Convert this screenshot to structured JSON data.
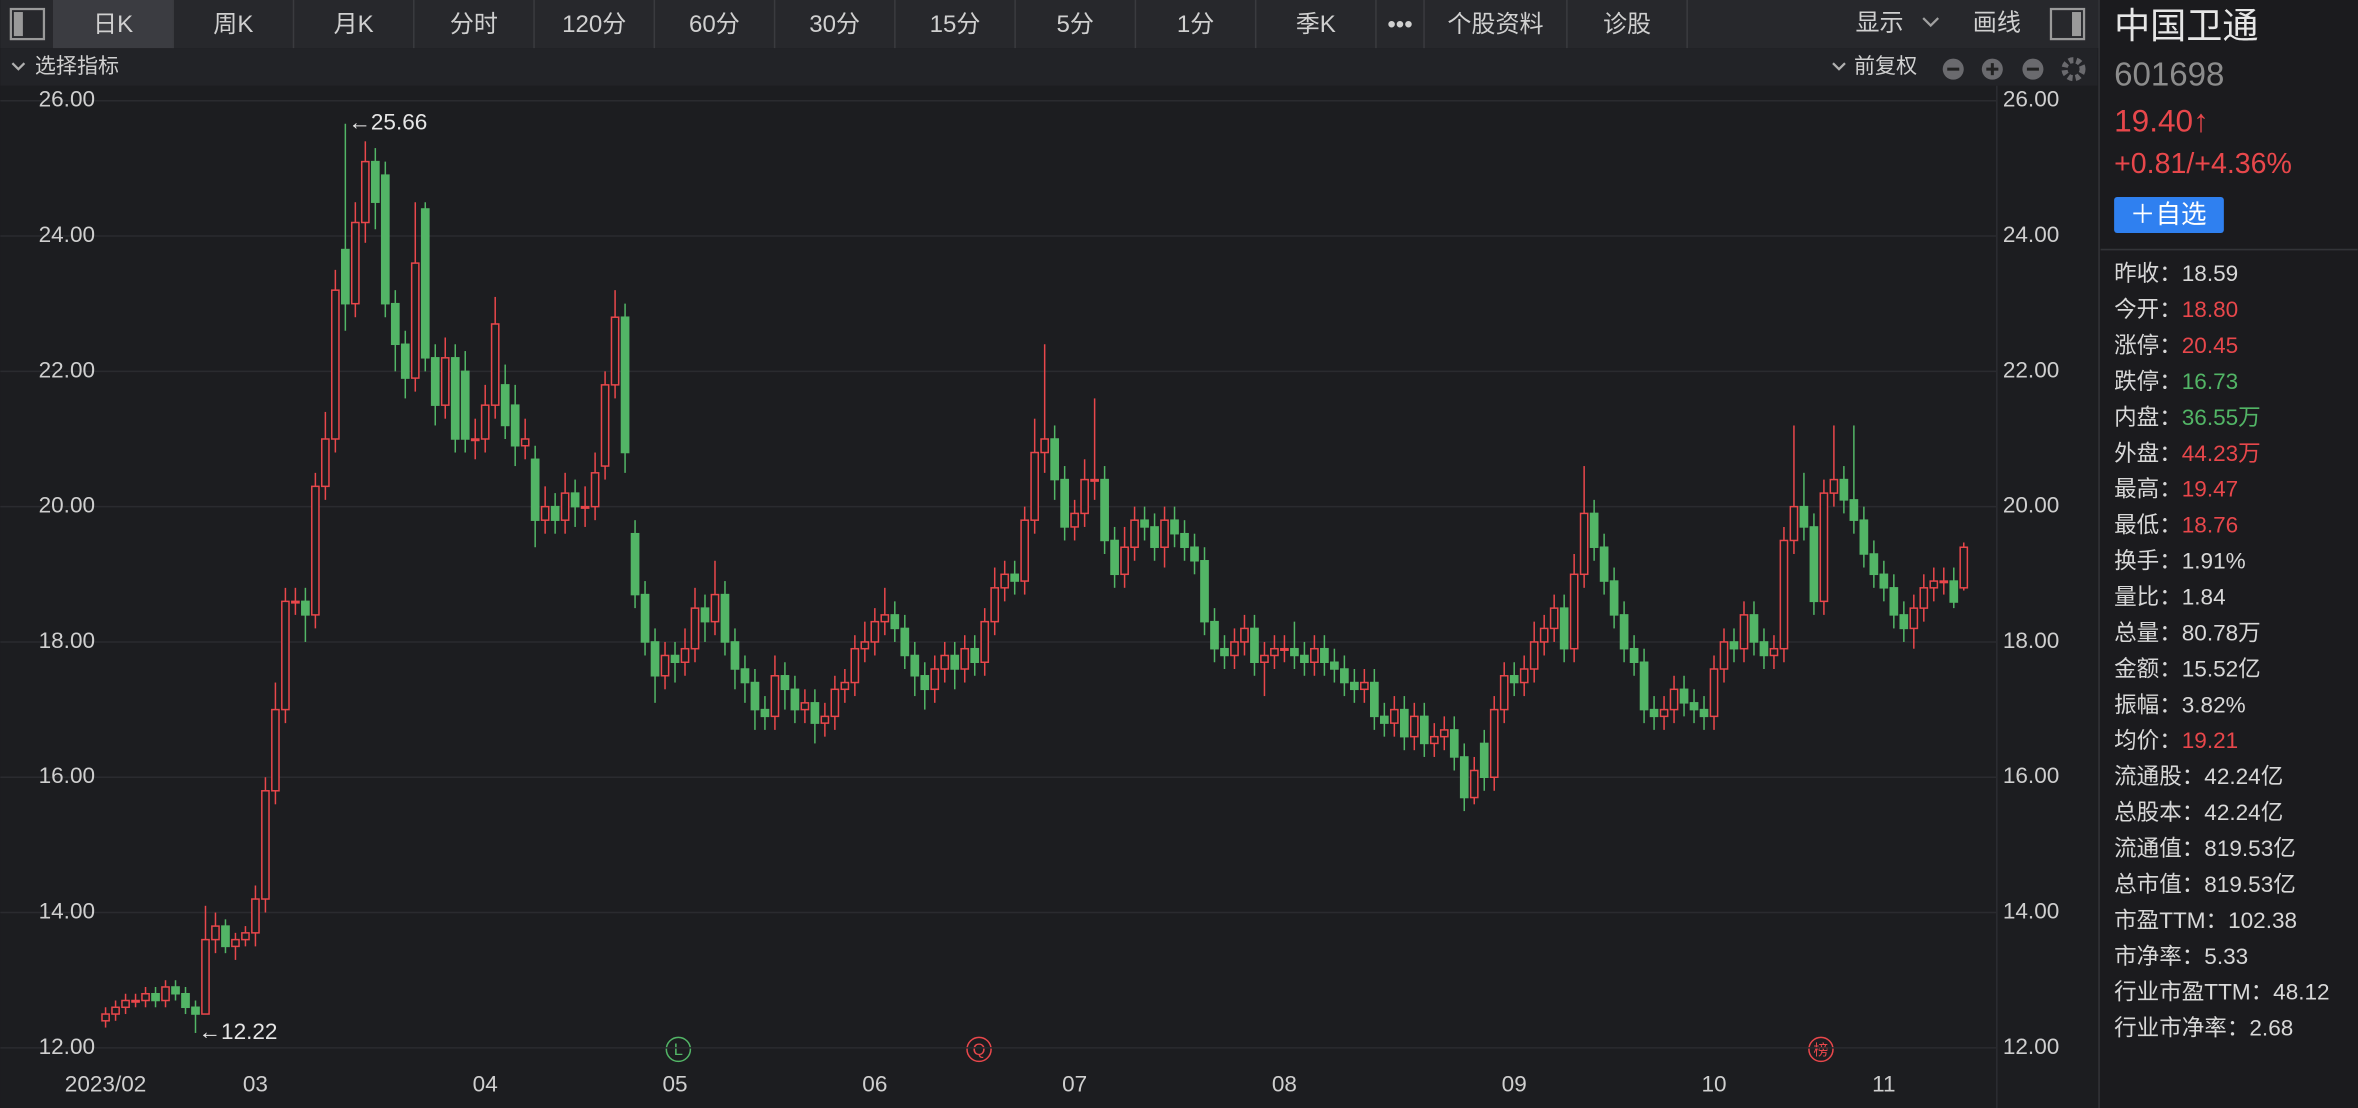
{
  "toolbar": {
    "tabs": [
      "日K",
      "周K",
      "月K",
      "分时",
      "120分",
      "60分",
      "30分",
      "15分",
      "5分",
      "1分",
      "季K",
      "•••",
      "个股资料",
      "诊股"
    ],
    "display": "显示",
    "draw": "画线"
  },
  "subbar": {
    "indicator": "选择指标",
    "adjust": "前复权"
  },
  "chart_data": {
    "type": "candlestick",
    "categories": [
      "2023/02",
      null,
      null,
      null,
      null,
      null,
      null,
      null,
      null,
      null,
      null,
      null,
      null,
      null,
      null,
      "03",
      null,
      null,
      null,
      null,
      null,
      null,
      null,
      null,
      null,
      null,
      null,
      null,
      null,
      null,
      null,
      null,
      null,
      null,
      null,
      null,
      null,
      null,
      "04",
      null,
      null,
      null,
      null,
      null,
      null,
      null,
      null,
      null,
      null,
      null,
      null,
      null,
      null,
      null,
      null,
      null,
      null,
      "05",
      null,
      null,
      null,
      null,
      null,
      null,
      null,
      null,
      null,
      null,
      null,
      null,
      null,
      null,
      null,
      null,
      null,
      null,
      null,
      "06",
      null,
      null,
      null,
      null,
      null,
      null,
      null,
      null,
      null,
      null,
      null,
      null,
      null,
      null,
      null,
      null,
      null,
      null,
      null,
      "07",
      null,
      null,
      null,
      null,
      null,
      null,
      null,
      null,
      null,
      null,
      null,
      null,
      null,
      null,
      null,
      null,
      null,
      null,
      null,
      null,
      "08",
      null,
      null,
      null,
      null,
      null,
      null,
      null,
      null,
      null,
      null,
      null,
      null,
      null,
      null,
      null,
      null,
      null,
      null,
      null,
      null,
      null,
      null,
      "09",
      null,
      null,
      null,
      null,
      null,
      null,
      null,
      null,
      null,
      null,
      null,
      null,
      null,
      null,
      null,
      null,
      null,
      null,
      null,
      "10",
      null,
      null,
      null,
      null,
      null,
      null,
      null,
      null,
      null,
      null,
      null,
      null,
      null,
      null,
      null,
      null,
      "11",
      null,
      null,
      null,
      null,
      null,
      null,
      null,
      null
    ],
    "open": [
      12.4,
      12.5,
      12.6,
      12.7,
      12.7,
      12.8,
      12.7,
      12.9,
      12.8,
      12.6,
      12.5,
      13.6,
      13.8,
      13.5,
      13.6,
      13.7,
      14.2,
      15.8,
      17.0,
      18.6,
      18.6,
      18.4,
      20.3,
      21.0,
      23.8,
      23.0,
      24.2,
      25.1,
      24.9,
      23.0,
      22.4,
      21.9,
      24.4,
      22.2,
      21.5,
      22.2,
      22.0,
      21.0,
      21.0,
      21.5,
      21.8,
      21.5,
      20.9,
      20.7,
      19.8,
      20.0,
      19.8,
      20.2,
      20.0,
      20.0,
      20.6,
      21.8,
      22.8,
      19.6,
      18.7,
      18.0,
      17.5,
      17.8,
      17.7,
      17.9,
      18.5,
      18.3,
      18.7,
      18.0,
      17.6,
      17.4,
      17.0,
      16.9,
      17.5,
      17.3,
      17.0,
      17.1,
      16.8,
      16.9,
      17.3,
      17.4,
      17.9,
      18.0,
      18.3,
      18.4,
      18.2,
      17.8,
      17.5,
      17.3,
      17.6,
      17.8,
      17.6,
      17.9,
      17.7,
      18.3,
      18.8,
      19.0,
      18.9,
      19.8,
      20.8,
      21.0,
      20.4,
      19.7,
      19.9,
      20.4,
      20.4,
      19.5,
      19.0,
      19.4,
      19.8,
      19.7,
      19.4,
      19.8,
      19.6,
      19.4,
      19.2,
      18.3,
      17.9,
      17.8,
      18.0,
      18.2,
      17.7,
      17.8,
      17.9,
      17.9,
      17.8,
      17.7,
      17.9,
      17.7,
      17.6,
      17.4,
      17.3,
      17.4,
      16.9,
      16.8,
      17.0,
      16.6,
      16.9,
      16.5,
      16.6,
      16.7,
      16.3,
      15.7,
      16.5,
      16.0,
      17.0,
      17.5,
      17.4,
      17.6,
      18.0,
      18.2,
      18.5,
      17.9,
      19.0,
      19.9,
      19.4,
      18.9,
      18.4,
      17.9,
      17.7,
      17.0,
      16.9,
      17.0,
      17.3,
      17.1,
      17.0,
      16.9,
      17.6,
      18.0,
      17.9,
      18.4,
      18.0,
      17.8,
      17.9,
      19.5,
      20.0,
      19.7,
      18.6,
      20.2,
      20.4,
      20.1,
      19.8,
      19.3,
      19.0,
      18.8,
      18.4,
      18.2,
      18.5,
      18.8,
      18.9,
      18.9,
      18.8
    ],
    "high": [
      12.6,
      12.7,
      12.8,
      12.8,
      12.9,
      12.9,
      13.0,
      13.0,
      12.9,
      12.7,
      14.1,
      14.0,
      13.9,
      13.7,
      13.8,
      14.4,
      16.0,
      17.4,
      18.8,
      18.8,
      18.8,
      20.5,
      21.4,
      23.5,
      25.66,
      24.5,
      25.4,
      25.3,
      25.1,
      23.2,
      22.6,
      24.5,
      24.5,
      22.4,
      22.5,
      22.4,
      22.3,
      21.3,
      21.8,
      23.1,
      22.1,
      21.8,
      21.3,
      20.9,
      20.3,
      20.2,
      20.5,
      20.4,
      20.3,
      20.8,
      22.0,
      23.2,
      23.0,
      19.8,
      18.9,
      18.2,
      18.0,
      18.0,
      18.2,
      18.8,
      18.7,
      19.2,
      18.9,
      18.2,
      17.8,
      17.6,
      17.2,
      17.8,
      17.7,
      17.5,
      17.3,
      17.3,
      17.1,
      17.5,
      17.6,
      18.1,
      18.3,
      18.5,
      18.8,
      18.6,
      18.4,
      18.0,
      17.7,
      17.8,
      18.0,
      18.0,
      18.1,
      18.1,
      18.5,
      19.1,
      19.2,
      19.2,
      20.0,
      21.3,
      22.4,
      21.2,
      20.6,
      20.1,
      20.7,
      21.6,
      20.6,
      19.7,
      19.7,
      20.0,
      20.0,
      19.9,
      20.0,
      20.0,
      19.8,
      19.6,
      19.4,
      18.5,
      18.1,
      18.2,
      18.4,
      18.4,
      18.0,
      18.1,
      18.1,
      18.3,
      18.0,
      18.1,
      18.1,
      17.9,
      17.8,
      17.6,
      17.6,
      17.6,
      17.1,
      17.2,
      17.2,
      17.1,
      17.1,
      16.8,
      16.9,
      16.9,
      16.5,
      16.3,
      16.7,
      17.2,
      17.7,
      17.7,
      17.8,
      18.3,
      18.4,
      18.7,
      18.7,
      19.3,
      20.6,
      20.1,
      19.6,
      19.1,
      18.6,
      18.1,
      17.9,
      17.2,
      17.2,
      17.5,
      17.5,
      17.3,
      17.2,
      17.8,
      18.2,
      18.2,
      18.6,
      18.6,
      18.2,
      18.1,
      19.7,
      21.2,
      20.5,
      19.9,
      20.4,
      21.2,
      20.6,
      21.2,
      20.0,
      19.5,
      19.2,
      19.0,
      18.6,
      18.7,
      19.0,
      19.1,
      19.1,
      19.1,
      19.47
    ],
    "low": [
      12.3,
      12.4,
      12.5,
      12.6,
      12.6,
      12.6,
      12.6,
      12.7,
      12.5,
      12.22,
      12.5,
      13.4,
      13.4,
      13.3,
      13.5,
      13.5,
      14.0,
      15.6,
      16.8,
      18.4,
      18.0,
      18.2,
      20.1,
      20.8,
      22.6,
      22.8,
      23.9,
      24.1,
      22.8,
      22.0,
      21.6,
      21.7,
      22.0,
      21.2,
      21.3,
      20.8,
      20.8,
      20.7,
      20.8,
      21.3,
      21.0,
      20.6,
      20.7,
      19.4,
      19.6,
      19.6,
      19.6,
      19.7,
      19.7,
      19.8,
      20.4,
      21.6,
      20.5,
      18.5,
      17.8,
      17.1,
      17.3,
      17.4,
      17.5,
      17.7,
      18.0,
      18.1,
      17.8,
      17.3,
      17.1,
      16.7,
      16.7,
      16.7,
      17.0,
      16.8,
      16.8,
      16.5,
      16.6,
      16.7,
      17.1,
      17.2,
      17.7,
      17.8,
      18.1,
      18.0,
      17.6,
      17.2,
      17.0,
      17.1,
      17.4,
      17.3,
      17.4,
      17.5,
      17.5,
      18.1,
      18.6,
      18.7,
      18.7,
      19.6,
      20.5,
      20.1,
      19.5,
      19.5,
      19.7,
      20.1,
      19.3,
      18.8,
      18.8,
      19.2,
      19.5,
      19.2,
      19.1,
      19.4,
      19.2,
      19.0,
      18.1,
      17.7,
      17.6,
      17.6,
      17.8,
      17.5,
      17.2,
      17.6,
      17.7,
      17.6,
      17.5,
      17.5,
      17.5,
      17.4,
      17.2,
      17.1,
      17.1,
      16.7,
      16.6,
      16.6,
      16.4,
      16.4,
      16.3,
      16.3,
      16.4,
      16.1,
      15.5,
      15.6,
      15.8,
      15.8,
      16.8,
      17.2,
      17.2,
      17.4,
      17.8,
      18.0,
      17.7,
      17.7,
      18.8,
      19.2,
      18.7,
      18.2,
      17.7,
      17.5,
      16.8,
      16.7,
      16.7,
      16.8,
      16.9,
      16.8,
      16.7,
      16.7,
      17.4,
      17.7,
      17.7,
      17.8,
      17.6,
      17.6,
      17.7,
      19.3,
      19.5,
      18.4,
      18.4,
      20.0,
      19.9,
      19.6,
      19.1,
      18.8,
      18.6,
      18.2,
      18.0,
      17.9,
      18.3,
      18.6,
      18.7,
      18.5,
      18.76
    ],
    "close": [
      12.5,
      12.6,
      12.7,
      12.7,
      12.8,
      12.7,
      12.9,
      12.8,
      12.6,
      12.5,
      13.6,
      13.8,
      13.5,
      13.6,
      13.7,
      14.2,
      15.8,
      17.0,
      18.6,
      18.6,
      18.4,
      20.3,
      21.0,
      23.2,
      23.0,
      24.2,
      25.1,
      24.5,
      23.0,
      22.4,
      21.9,
      23.6,
      22.2,
      21.5,
      22.2,
      21.0,
      21.0,
      21.0,
      21.5,
      22.7,
      21.2,
      20.9,
      21.0,
      19.8,
      20.0,
      19.8,
      20.2,
      20.0,
      20.0,
      20.5,
      21.8,
      22.8,
      20.8,
      18.7,
      18.0,
      17.5,
      17.8,
      17.7,
      17.9,
      18.5,
      18.3,
      18.7,
      18.0,
      17.6,
      17.4,
      17.0,
      16.9,
      17.5,
      17.3,
      17.0,
      17.1,
      16.8,
      16.9,
      17.3,
      17.4,
      17.9,
      18.0,
      18.3,
      18.4,
      18.2,
      17.8,
      17.5,
      17.3,
      17.6,
      17.8,
      17.6,
      17.9,
      17.7,
      18.3,
      18.8,
      19.0,
      18.9,
      19.8,
      20.8,
      21.0,
      20.4,
      19.7,
      19.9,
      20.4,
      20.4,
      19.5,
      19.0,
      19.4,
      19.8,
      19.7,
      19.4,
      19.8,
      19.6,
      19.4,
      19.2,
      18.3,
      17.9,
      17.8,
      18.0,
      18.2,
      17.7,
      17.8,
      17.9,
      17.9,
      17.8,
      17.7,
      17.9,
      17.7,
      17.6,
      17.4,
      17.3,
      17.4,
      16.9,
      16.8,
      17.0,
      16.6,
      16.9,
      16.5,
      16.6,
      16.7,
      16.3,
      15.7,
      16.1,
      16.0,
      17.0,
      17.5,
      17.4,
      17.6,
      18.0,
      18.2,
      18.5,
      17.9,
      19.0,
      19.9,
      19.4,
      18.9,
      18.4,
      17.9,
      17.7,
      17.0,
      16.9,
      17.0,
      17.3,
      17.1,
      17.0,
      16.9,
      17.6,
      18.0,
      17.9,
      18.4,
      18.0,
      17.8,
      17.9,
      19.5,
      20.0,
      19.7,
      18.6,
      20.2,
      20.4,
      20.1,
      19.8,
      19.3,
      19.0,
      18.8,
      18.4,
      18.2,
      18.5,
      18.8,
      18.9,
      18.9,
      18.59,
      19.4
    ],
    "up_color": "#e8474b",
    "down_color": "#52b566",
    "ylim": [
      12,
      26
    ],
    "yticks": [
      {
        "value": 12,
        "label": "12.00"
      },
      {
        "value": 14,
        "label": "14.00"
      },
      {
        "value": 16,
        "label": "16.00"
      },
      {
        "value": 18,
        "label": "18.00"
      },
      {
        "value": 20,
        "label": "20.00"
      },
      {
        "value": 22,
        "label": "22.00"
      },
      {
        "value": 24,
        "label": "24.00"
      },
      {
        "value": 26,
        "label": "26.00"
      }
    ],
    "grid": true,
    "high_label": "←25.66",
    "low_label": "←12.22",
    "event_markers": [
      "L",
      "Q",
      "榜"
    ]
  },
  "quote": {
    "name": "中国卫通",
    "code": "601698",
    "price": "19.40↑",
    "change": "+0.81/+4.36%",
    "watch_button": "＋自选",
    "stats": [
      {
        "label": "昨收：",
        "value": "18.59",
        "color": "#d8d8d8"
      },
      {
        "label": "今开：",
        "value": "18.80",
        "color": "#e8474b"
      },
      {
        "label": "涨停：",
        "value": "20.45",
        "color": "#e8474b"
      },
      {
        "label": "跌停：",
        "value": "16.73",
        "color": "#52b566"
      },
      {
        "label": "内盘：",
        "value": "36.55万",
        "color": "#52b566"
      },
      {
        "label": "外盘：",
        "value": "44.23万",
        "color": "#e8474b"
      },
      {
        "label": "最高：",
        "value": "19.47",
        "color": "#e8474b"
      },
      {
        "label": "最低：",
        "value": "18.76",
        "color": "#e8474b"
      },
      {
        "label": "换手：",
        "value": "1.91%",
        "color": "#d8d8d8"
      },
      {
        "label": "量比：",
        "value": "1.84",
        "color": "#d8d8d8"
      },
      {
        "label": "总量：",
        "value": "80.78万",
        "color": "#d8d8d8"
      },
      {
        "label": "金额：",
        "value": "15.52亿",
        "color": "#d8d8d8"
      },
      {
        "label": "振幅：",
        "value": "3.82%",
        "color": "#d8d8d8"
      },
      {
        "label": "均价：",
        "value": "19.21",
        "color": "#e8474b"
      },
      {
        "label": "流通股：",
        "value": "42.24亿",
        "color": "#d8d8d8"
      },
      {
        "label": "总股本：",
        "value": "42.24亿",
        "color": "#d8d8d8"
      },
      {
        "label": "流通值：",
        "value": "819.53亿",
        "color": "#d8d8d8"
      },
      {
        "label": "总市值：",
        "value": "819.53亿",
        "color": "#d8d8d8"
      },
      {
        "label": "市盈TTM：",
        "value": "102.38",
        "color": "#d8d8d8"
      },
      {
        "label": "市净率：",
        "value": "5.33",
        "color": "#d8d8d8"
      },
      {
        "label": "行业市盈TTM：",
        "value": "48.12",
        "color": "#d8d8d8"
      },
      {
        "label": "行业市净率：",
        "value": "2.68",
        "color": "#d8d8d8"
      }
    ]
  }
}
